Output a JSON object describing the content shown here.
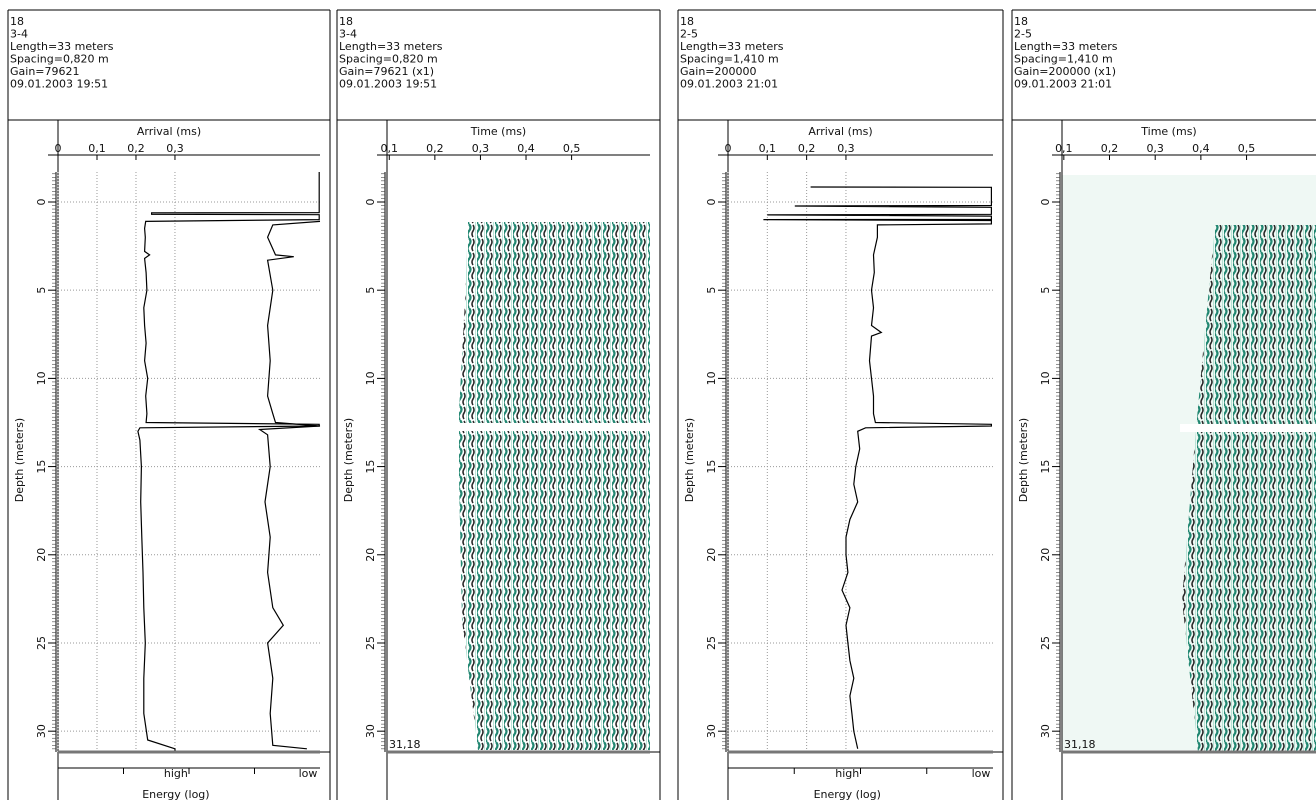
{
  "panels": [
    {
      "header": [
        "18",
        "3-4",
        "Length=33 meters",
        "Spacing=0,820 m",
        "Gain=79621",
        "09.01.2003 19:51"
      ],
      "top_axis": {
        "title": "Arrival (ms)",
        "xlim": [
          0,
          0.672
        ],
        "xticks": [
          0,
          {
            "value": 0.1,
            "label": "0,1"
          },
          {
            "value": 0.2,
            "label": "0,2"
          },
          {
            "value": 0.3,
            "label": "0,3"
          }
        ]
      },
      "depth_axis": {
        "title": "Depth (meters)",
        "ylim": [
          -1.7,
          31.18
        ],
        "yticks": [
          0,
          5,
          10,
          15,
          20,
          25,
          30
        ]
      },
      "grid": true,
      "arrival": {
        "depth": [
          -1.7,
          0.6,
          0.62,
          0.7,
          0.72,
          1.0,
          1.1,
          1.5,
          2,
          2.8,
          3,
          3.2,
          4,
          5,
          6,
          7,
          8,
          9,
          10,
          11,
          12,
          12.5,
          12.6,
          12.7,
          12.8,
          13,
          13.5,
          15,
          17,
          19,
          21,
          23,
          25,
          27,
          29,
          30.5,
          31,
          31.1
        ],
        "values": [
          0.67,
          0.67,
          0.24,
          0.24,
          0.67,
          0.67,
          0.225,
          0.222,
          0.224,
          0.222,
          0.235,
          0.222,
          0.226,
          0.228,
          0.22,
          0.222,
          0.226,
          0.222,
          0.23,
          0.225,
          0.228,
          0.226,
          0.67,
          0.67,
          0.21,
          0.205,
          0.21,
          0.214,
          0.212,
          0.215,
          0.218,
          0.22,
          0.224,
          0.22,
          0.22,
          0.23,
          0.3,
          0.3
        ]
      },
      "energy": {
        "xlim": [
          0,
          1
        ],
        "depth": [
          1.1,
          1.3,
          2,
          3,
          3.1,
          3.3,
          5,
          7,
          9,
          11,
          12,
          12.5,
          12.7,
          12.9,
          13.2,
          15,
          17,
          19,
          21,
          23,
          24,
          25,
          27,
          29,
          30.8,
          31
        ],
        "values": [
          1.0,
          0.82,
          0.8,
          0.83,
          0.9,
          0.8,
          0.82,
          0.8,
          0.81,
          0.8,
          0.82,
          0.83,
          1.0,
          0.77,
          0.8,
          0.81,
          0.79,
          0.81,
          0.8,
          0.82,
          0.86,
          0.8,
          0.82,
          0.81,
          0.82,
          0.95
        ]
      },
      "bottom_axis": {
        "labels": [
          "high",
          "low"
        ],
        "title": "Energy (log)"
      }
    },
    {
      "header": [
        "18",
        "3-4",
        "Length=33 meters",
        "Spacing=0,820 m",
        "Gain=79621 (x1)",
        "09.01.2003 19:51"
      ],
      "top_axis": {
        "title": "Time (ms)",
        "xlim": [
          0.095,
          0.672
        ],
        "xticks": [
          {
            "value": 0.1,
            "label": "0,1"
          },
          {
            "value": 0.2,
            "label": "0,2"
          },
          {
            "value": 0.3,
            "label": "0,3"
          },
          {
            "value": 0.4,
            "label": "0,4"
          },
          {
            "value": 0.5,
            "label": "0,5"
          }
        ]
      },
      "depth_axis": {
        "title": "Depth (meters)",
        "ylim": [
          -1.7,
          31.18
        ],
        "yticks": [
          0,
          5,
          10,
          15,
          20,
          25,
          30
        ]
      },
      "grid": false,
      "corner_label": "31,18"
    },
    {
      "header": [
        "18",
        "2-5",
        "Length=33 meters",
        "Spacing=1,410 m",
        "Gain=200000",
        "09.01.2003 21:01"
      ],
      "top_axis": {
        "title": "Arrival (ms)",
        "xlim": [
          0,
          0.674
        ],
        "xticks": [
          0,
          {
            "value": 0.1,
            "label": "0,1"
          },
          {
            "value": 0.2,
            "label": "0,2"
          },
          {
            "value": 0.3,
            "label": "0,3"
          }
        ]
      },
      "depth_axis": {
        "title": "Depth (meters)",
        "ylim": [
          -1.7,
          31.18
        ],
        "yticks": [
          0,
          5,
          10,
          15,
          20,
          25,
          30
        ]
      },
      "grid": true,
      "arrival": {
        "depth": [
          -0.85,
          -0.83,
          0.2,
          0.23,
          0.3,
          0.7,
          0.73,
          0.8,
          0.98,
          1.0,
          1.05,
          1.24,
          1.3,
          2,
          3,
          4,
          5,
          6,
          7,
          7.4,
          7.6,
          9,
          11,
          12,
          12.5,
          12.6,
          12.7,
          12.8,
          13,
          14,
          15,
          16,
          17,
          18,
          19,
          20,
          21,
          22,
          23,
          24,
          25,
          26,
          27,
          28,
          29,
          30,
          31
        ],
        "values": [
          0.21,
          0.67,
          0.67,
          0.17,
          0.67,
          0.67,
          0.1,
          0.67,
          0.67,
          0.09,
          0.67,
          0.67,
          0.38,
          0.38,
          0.37,
          0.372,
          0.365,
          0.37,
          0.365,
          0.39,
          0.365,
          0.36,
          0.37,
          0.37,
          0.375,
          0.67,
          0.67,
          0.35,
          0.33,
          0.335,
          0.325,
          0.32,
          0.33,
          0.31,
          0.3,
          0.3,
          0.305,
          0.29,
          0.31,
          0.3,
          0.305,
          0.31,
          0.32,
          0.31,
          0.315,
          0.32,
          0.33
        ]
      },
      "bottom_axis": {
        "labels": [
          "high",
          "low"
        ],
        "title": "Energy (log)"
      }
    },
    {
      "header": [
        "18",
        "2-5",
        "Length=33 meters",
        "Spacing=1,410 m",
        "Gain=200000 (x1)",
        "09.01.2003 21:01"
      ],
      "top_axis": {
        "title": "Time (ms)",
        "xlim": [
          0.096,
          0.652
        ],
        "xticks": [
          {
            "value": 0.1,
            "label": "0,1"
          },
          {
            "value": 0.2,
            "label": "0,2"
          },
          {
            "value": 0.3,
            "label": "0,3"
          },
          {
            "value": 0.4,
            "label": "0,4"
          },
          {
            "value": 0.5,
            "label": "0,5"
          }
        ]
      },
      "depth_axis": {
        "title": "Depth (meters)",
        "ylim": [
          -1.7,
          31.18
        ],
        "yticks": [
          0,
          5,
          10,
          15,
          20,
          25,
          30
        ]
      },
      "grid": false,
      "corner_label": "31,18"
    }
  ]
}
